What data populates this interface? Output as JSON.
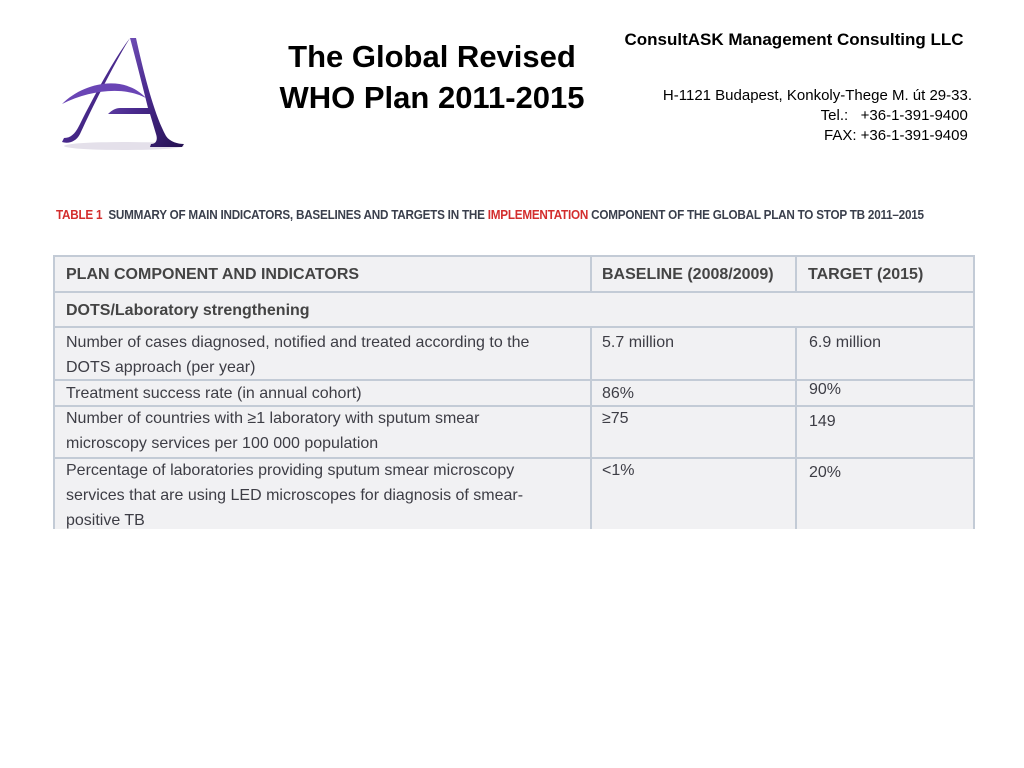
{
  "header": {
    "title_line1": "The Global Revised",
    "title_line2": "WHO Plan 2011-2015",
    "company": "ConsultASK Management Consulting LLC",
    "address": "H-1121 Budapest, Konkoly-Thege M. út 29-33.",
    "tel": "Tel.:   +36-1-391-9400 ",
    "fax": "FAX: +36-1-391-9409 "
  },
  "caption": {
    "label": "TABLE 1",
    "text_before": "SUMMARY OF MAIN INDICATORS, BASELINES AND TARGETS IN THE",
    "highlight": "IMPLEMENTATION",
    "text_after": "COMPONENT OF THE GLOBAL PLAN TO STOP TB 2011–2015"
  },
  "table": {
    "headers": [
      "PLAN COMPONENT AND INDICATORS",
      "BASELINE (2008/2009)",
      "TARGET (2015)"
    ],
    "section": "DOTS/Laboratory strengthening",
    "rows": [
      {
        "indicator": [
          "Number of cases diagnosed, notified and treated according to the",
          "DOTS approach (per year)"
        ],
        "baseline": "5.7 million",
        "target": "6.9 million"
      },
      {
        "indicator": [
          "Treatment success rate (in annual cohort)"
        ],
        "baseline": "86%",
        "target": "90%"
      },
      {
        "indicator": [
          "Number of countries with ≥1 laboratory with sputum smear",
          "microscopy services per 100 000 population"
        ],
        "baseline": "≥75",
        "target": "149"
      },
      {
        "indicator": [
          "Percentage of laboratories providing sputum smear microscopy",
          "services that are using LED microscopes for diagnosis of smear-",
          "positive TB"
        ],
        "baseline": "<1%",
        "target": "20%"
      }
    ]
  },
  "colors": {
    "logo_purple": "#4b2a8c",
    "caption_red": "#d32d2d",
    "table_border": "#c3cbd6",
    "table_bg": "#f1f1f3"
  }
}
